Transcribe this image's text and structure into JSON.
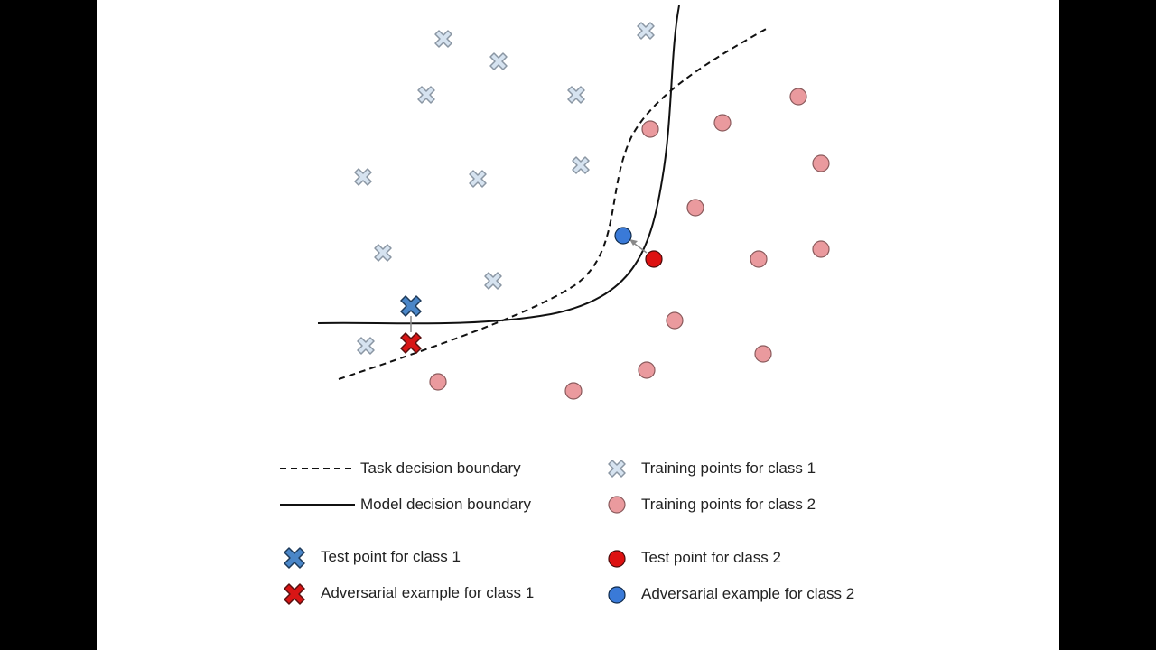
{
  "colors": {
    "train_class1_fill": "#d6e3f0",
    "train_class1_stroke": "#8a96a3",
    "train_class2_fill": "#ea9a9e",
    "train_class2_stroke": "#8a5a5c",
    "test_class1_fill": "#4a86c8",
    "test_class2_fill": "#dd1111",
    "adv_class1_fill": "#d81515",
    "adv_class2_fill": "#3a7ad8",
    "boundary": "#111111",
    "arrow": "#888888"
  },
  "legend": {
    "task_boundary": "Task decision boundary",
    "model_boundary": "Model decision boundary",
    "train_class1": "Training points for class 1",
    "train_class2": "Training points for class 2",
    "test_class1": "Test point for class 1",
    "test_class2": "Test point for class 2",
    "adv_class1": "Adversarial example for class 1",
    "adv_class2": "Adversarial example for class 2"
  },
  "icons": {
    "class1_marker": "x-mark",
    "class2_marker": "circle"
  }
}
